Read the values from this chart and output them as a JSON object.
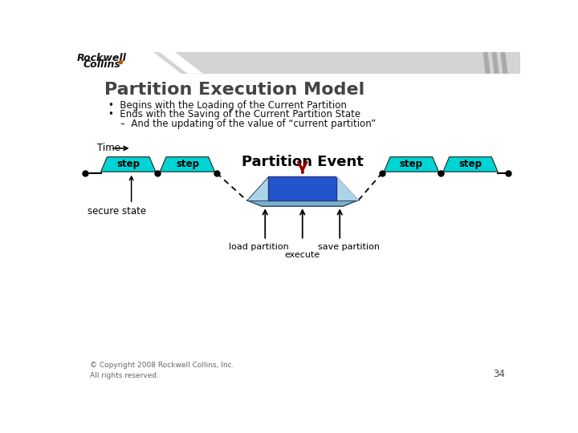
{
  "title": "Partition Execution Model",
  "bullet1": "Begins with the Loading of the Current Partition",
  "bullet2": "Ends with the Saving of the Current Partition State",
  "sub_bullet": "And the updating of the value of “current partition”",
  "time_label": "Time",
  "partition_event_label": "Partition Event",
  "step_label": "step",
  "secure_state_label": "secure state",
  "load_partition_label": "load partition",
  "execute_label": "execute",
  "save_partition_label": "save partition",
  "copyright": "© Copyright 2008 Rockwell Collins, Inc.\nAll rights reserved.",
  "page_number": "34",
  "bg_color": "#ffffff",
  "header_bg": "#d4d4d4",
  "step_fill": "#00d4d4",
  "execute_fill": "#2255cc",
  "tray_fill": "#88bbcc",
  "title_color": "#444444",
  "arrow_red": "#990000",
  "text_dark": "#111111"
}
